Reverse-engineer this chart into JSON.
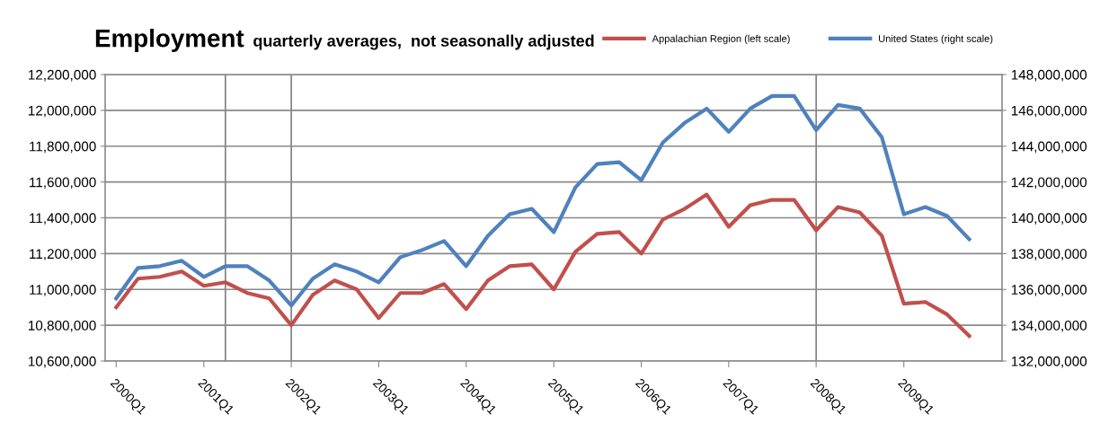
{
  "chart_data": {
    "type": "line",
    "title": "Employment",
    "subtitle": "quarterly averages,  not seasonally adjusted",
    "x": [
      "2000-01",
      "2000-04",
      "2000-07",
      "2000-10",
      "2001-01",
      "2001-04",
      "2001-07",
      "2001-10",
      "2002-01",
      "2002-04",
      "2002-07",
      "2002-10",
      "2003-01",
      "2003-04",
      "2003-07",
      "2003-10",
      "2004-01",
      "2004-04",
      "2004-07",
      "2004-10",
      "2005-01",
      "2005-04",
      "2005-07",
      "2005-10",
      "2006-01",
      "2006-04",
      "2006-07",
      "2006-10",
      "2007-01",
      "2007-04",
      "2007-07",
      "2007-10",
      "2008-01",
      "2008-04",
      "2008-07",
      "2008-10",
      "2009-01",
      "2009-04",
      "2009-07",
      "2009-10"
    ],
    "series": [
      {
        "name": "Appalachian Region (left scale)",
        "color": "#c0504d",
        "values": [
          10900000,
          11060000,
          11070000,
          11100000,
          11020000,
          11040000,
          10980000,
          10950000,
          10800000,
          10970000,
          11050000,
          11000000,
          10840000,
          10980000,
          10980000,
          11030000,
          10890000,
          11050000,
          11130000,
          11140000,
          11000000,
          11210000,
          11310000,
          11320000,
          11200000,
          11390000,
          11450000,
          11530000,
          11350000,
          11470000,
          11500000,
          11500000,
          11330000,
          11460000,
          11430000,
          11300000,
          10920000,
          10930000,
          10860000,
          10740000
        ]
      },
      {
        "name": "United States (right scale)",
        "color": "#4f81bd",
        "axis": "y2",
        "values": [
          135500000,
          137200000,
          137300000,
          137600000,
          136700000,
          137300000,
          137300000,
          136500000,
          135100000,
          136600000,
          137400000,
          137000000,
          136400000,
          137800000,
          138200000,
          138700000,
          137300000,
          139000000,
          140200000,
          140500000,
          139200000,
          141700000,
          143000000,
          143100000,
          142100000,
          144200000,
          145300000,
          146100000,
          144800000,
          146100000,
          146800000,
          146800000,
          144900000,
          146300000,
          146100000,
          144500000,
          140200000,
          140600000,
          140100000,
          138800000
        ]
      }
    ],
    "xlim": [
      "1999-11-16",
      "2010-02-15"
    ],
    "xticks": [
      {
        "value": "2000-01",
        "label": "2000Q1"
      },
      {
        "value": "2001-01",
        "label": "2001Q1"
      },
      {
        "value": "2002-01",
        "label": "2002Q1"
      },
      {
        "value": "2003-01",
        "label": "2003Q1"
      },
      {
        "value": "2004-01",
        "label": "2004Q1"
      },
      {
        "value": "2005-01",
        "label": "2005Q1"
      },
      {
        "value": "2006-01",
        "label": "2006Q1"
      },
      {
        "value": "2007-01",
        "label": "2007Q1"
      },
      {
        "value": "2008-01",
        "label": "2008Q1"
      },
      {
        "value": "2009-01",
        "label": "2009Q1"
      }
    ],
    "ylim": [
      10600000,
      12200000
    ],
    "yticks": [
      {
        "value": 10600000,
        "label": "10,600,000"
      },
      {
        "value": 10800000,
        "label": "10,800,000"
      },
      {
        "value": 11000000,
        "label": "11,000,000"
      },
      {
        "value": 11200000,
        "label": "11,200,000"
      },
      {
        "value": 11400000,
        "label": "11,400,000"
      },
      {
        "value": 11600000,
        "label": "11,600,000"
      },
      {
        "value": 11800000,
        "label": "11,800,000"
      },
      {
        "value": 12000000,
        "label": "12,000,000"
      },
      {
        "value": 12200000,
        "label": "12,200,000"
      }
    ],
    "y2lim": [
      132000000,
      148000000
    ],
    "y2ticks": [
      {
        "value": 132000000,
        "label": "132,000,000"
      },
      {
        "value": 134000000,
        "label": "134,000,000"
      },
      {
        "value": 136000000,
        "label": "136,000,000"
      },
      {
        "value": 138000000,
        "label": "138,000,000"
      },
      {
        "value": 140000000,
        "label": "140,000,000"
      },
      {
        "value": 142000000,
        "label": "142,000,000"
      },
      {
        "value": 144000000,
        "label": "144,000,000"
      },
      {
        "value": 146000000,
        "label": "146,000,000"
      },
      {
        "value": 148000000,
        "label": "148,000,000"
      }
    ],
    "ref_lines": [
      {
        "axis": "x",
        "value": "2001-04",
        "color": "#808080"
      },
      {
        "axis": "x",
        "value": "2002-01",
        "color": "#808080"
      },
      {
        "axis": "x",
        "value": "2008-01",
        "color": "#808080"
      }
    ],
    "grid": "y",
    "legend": "top right",
    "marker": "none",
    "line_style": "solid"
  }
}
